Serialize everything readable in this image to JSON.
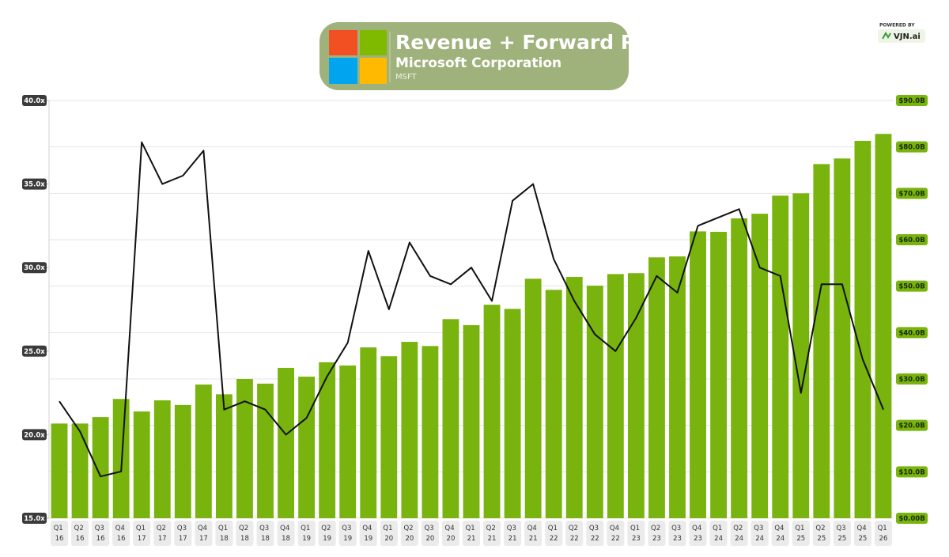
{
  "chart_data": {
    "type": "bar-line",
    "title": "Revenue + Forward P/E",
    "subtitle": "Microsoft Corporation",
    "ticker": "MSFT",
    "categories": [
      "Q1 16",
      "Q2 16",
      "Q3 16",
      "Q4 16",
      "Q1 17",
      "Q2 17",
      "Q3 17",
      "Q4 17",
      "Q1 18",
      "Q2 18",
      "Q3 18",
      "Q4 18",
      "Q1 19",
      "Q2 19",
      "Q3 19",
      "Q4 19",
      "Q1 20",
      "Q2 20",
      "Q3 20",
      "Q4 20",
      "Q1 21",
      "Q2 21",
      "Q3 21",
      "Q4 21",
      "Q1 22",
      "Q2 22",
      "Q3 22",
      "Q4 22",
      "Q1 23",
      "Q2 23",
      "Q3 23",
      "Q4 23",
      "Q1 24",
      "Q2 24",
      "Q3 24",
      "Q4 24",
      "Q1 25",
      "Q2 25",
      "Q3 25",
      "Q4 25",
      "Q1 26"
    ],
    "series": [
      {
        "type": "bar",
        "axis": "y2",
        "color": "#78b30e",
        "values": [
          20.4,
          20.4,
          21.8,
          25.7,
          23.0,
          25.4,
          24.4,
          28.8,
          26.7,
          30.0,
          29.0,
          32.4,
          30.5,
          33.6,
          32.9,
          36.8,
          34.9,
          38.0,
          37.1,
          42.9,
          41.6,
          46.0,
          45.1,
          51.6,
          49.2,
          52.0,
          50.1,
          52.6,
          52.8,
          56.2,
          56.4,
          61.8,
          61.7,
          64.6,
          65.6,
          69.5,
          70.0,
          76.3,
          77.5,
          81.3,
          82.8
        ]
      },
      {
        "type": "line",
        "axis": "y",
        "color": "#111111",
        "values": [
          22.0,
          20.2,
          17.5,
          17.8,
          37.5,
          35.0,
          35.5,
          37.0,
          21.5,
          22.0,
          21.5,
          20.0,
          21.0,
          23.5,
          25.5,
          31.0,
          27.5,
          31.5,
          29.5,
          29.0,
          30.0,
          28.0,
          34.0,
          35.0,
          30.5,
          28.0,
          26.0,
          25.0,
          27.0,
          29.5,
          28.5,
          32.5,
          33.0,
          33.5,
          30.0,
          29.5,
          22.5,
          29.0,
          29.0,
          24.5,
          21.5
        ]
      }
    ],
    "ylim": [
      15,
      40
    ],
    "yticks": [
      {
        "value": 15,
        "label": "15.0x"
      },
      {
        "value": 20,
        "label": "20.0x"
      },
      {
        "value": 25,
        "label": "25.0x"
      },
      {
        "value": 30,
        "label": "30.0x"
      },
      {
        "value": 35,
        "label": "35.0x"
      },
      {
        "value": 40,
        "label": "40.0x"
      }
    ],
    "y2lim": [
      0,
      90
    ],
    "y2ticks": [
      {
        "value": 0,
        "label": "$0.00B"
      },
      {
        "value": 10,
        "label": "$10.0B"
      },
      {
        "value": 20,
        "label": "$20.0B"
      },
      {
        "value": 30,
        "label": "$30.0B"
      },
      {
        "value": 40,
        "label": "$40.0B"
      },
      {
        "value": 50,
        "label": "$50.0B"
      },
      {
        "value": 60,
        "label": "$60.0B"
      },
      {
        "value": 70,
        "label": "$70.0B"
      },
      {
        "value": 80,
        "label": "$80.0B"
      },
      {
        "value": 90,
        "label": "$90.0B"
      }
    ],
    "grid": true
  },
  "branding": {
    "caption": "POWERED BY",
    "brand": "VJN.ai"
  }
}
